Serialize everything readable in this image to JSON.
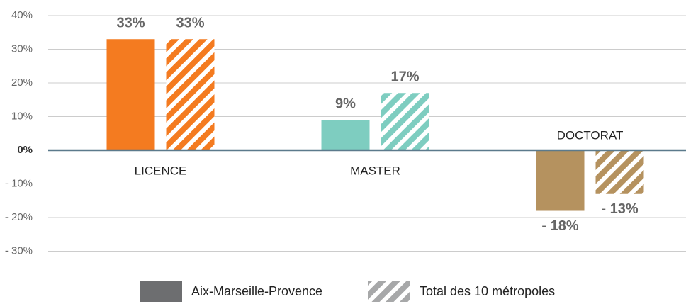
{
  "chart_data": {
    "type": "bar",
    "categories": [
      "LICENCE",
      "MASTER",
      "DOCTORAT"
    ],
    "category_colors": [
      "#f47b20",
      "#7ecdc0",
      "#b5925f"
    ],
    "series": [
      {
        "name": "Aix-Marseille-Provence",
        "color": "#6d6e70",
        "values": [
          33,
          9,
          -18
        ],
        "value_labels": [
          "33%",
          "9%",
          "- 18%"
        ]
      },
      {
        "name": "Total des 10 métropoles",
        "color": "#6d6e70",
        "hatch": true,
        "values": [
          33,
          17,
          -13
        ],
        "value_labels": [
          "33%",
          "17%",
          "- 13%"
        ]
      }
    ],
    "ylim": [
      -30,
      40
    ],
    "yticks": [
      {
        "value": 40,
        "label": "40%"
      },
      {
        "value": 30,
        "label": "30%"
      },
      {
        "value": 20,
        "label": "20%"
      },
      {
        "value": 10,
        "label": "10%"
      },
      {
        "value": 0,
        "label": "0%"
      },
      {
        "value": -10,
        "label": "- 10%"
      },
      {
        "value": -20,
        "label": "- 20%"
      },
      {
        "value": -30,
        "label": "- 30%"
      }
    ],
    "grid": true,
    "legend": "bottom"
  }
}
